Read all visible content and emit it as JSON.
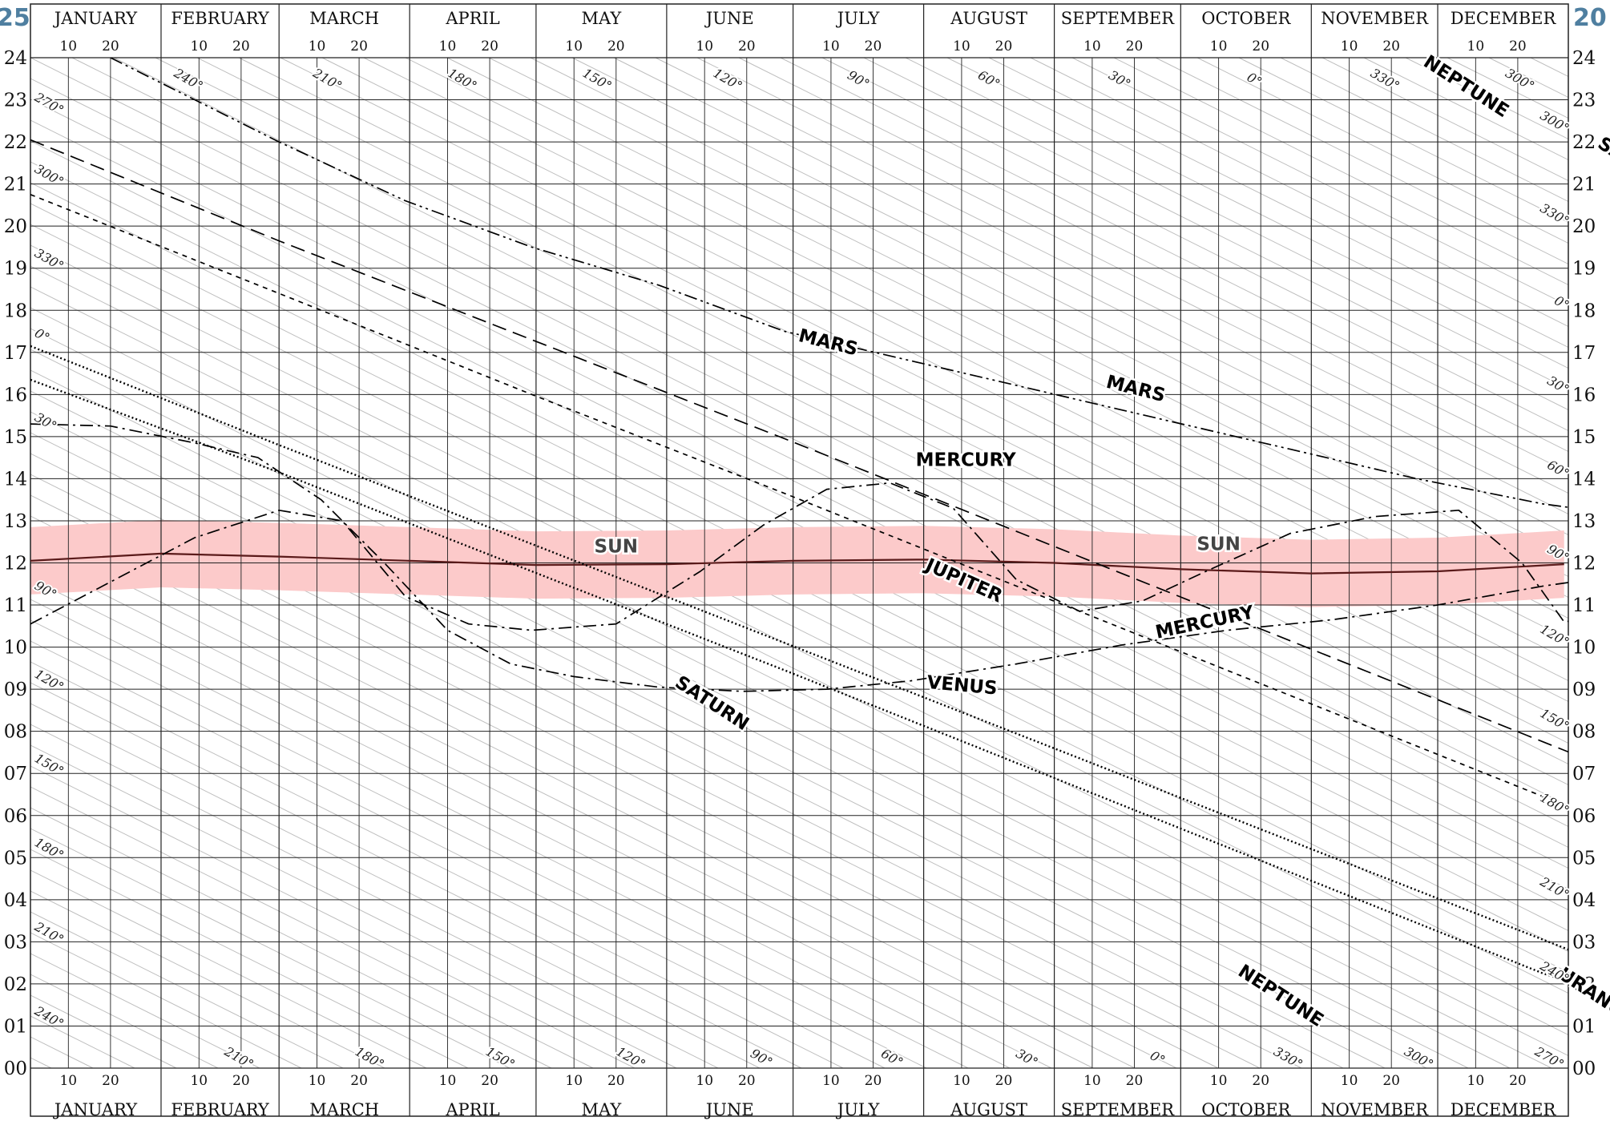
{
  "years": {
    "left": "25",
    "right": "20"
  },
  "months": [
    "JANUARY",
    "FEBRUARY",
    "MARCH",
    "APRIL",
    "MAY",
    "JUNE",
    "JULY",
    "AUGUST",
    "SEPTEMBER",
    "OCTOBER",
    "NOVEMBER",
    "DECEMBER"
  ],
  "day_ticks": [
    "10",
    "20"
  ],
  "hour_ticks": [
    "00",
    "01",
    "02",
    "03",
    "04",
    "05",
    "06",
    "07",
    "08",
    "09",
    "10",
    "11",
    "12",
    "13",
    "14",
    "15",
    "16",
    "17",
    "18",
    "19",
    "20",
    "21",
    "22",
    "23",
    "24"
  ],
  "colors": {
    "grid": "#222222",
    "diagonal": "#bbbbbb",
    "sun_band": "#fccaca",
    "sun_line": "#5a1a1a",
    "year": "#4f7fa0"
  },
  "chart_data": {
    "type": "line",
    "x_axis": {
      "range_days": [
        1,
        366
      ],
      "labels": "months"
    },
    "y_axis": {
      "range_hours": [
        0,
        24
      ]
    },
    "grid": true,
    "series": [
      {
        "name": "SUN",
        "style": "solid",
        "points": [
          [
            1,
            12.05
          ],
          [
            32,
            12.22
          ],
          [
            60,
            12.15
          ],
          [
            91,
            12.05
          ],
          [
            121,
            11.95
          ],
          [
            152,
            11.97
          ],
          [
            182,
            12.05
          ],
          [
            213,
            12.08
          ],
          [
            244,
            12.0
          ],
          [
            274,
            11.85
          ],
          [
            305,
            11.75
          ],
          [
            335,
            11.8
          ],
          [
            365,
            11.97
          ]
        ]
      },
      {
        "name": "MERCURY",
        "style": "dashdot",
        "points": [
          [
            1,
            10.55
          ],
          [
            40,
            12.6
          ],
          [
            60,
            13.25
          ],
          [
            75,
            13.0
          ],
          [
            90,
            11.2
          ],
          [
            105,
            10.55
          ],
          [
            120,
            10.4
          ],
          [
            140,
            10.55
          ],
          [
            160,
            11.8
          ],
          [
            175,
            12.9
          ],
          [
            190,
            13.75
          ],
          [
            205,
            13.9
          ],
          [
            220,
            13.3
          ],
          [
            235,
            11.6
          ],
          [
            250,
            10.85
          ],
          [
            265,
            11.1
          ],
          [
            280,
            11.8
          ],
          [
            300,
            12.7
          ],
          [
            320,
            13.1
          ],
          [
            340,
            13.25
          ],
          [
            355,
            12.0
          ],
          [
            365,
            10.6
          ],
          [
            380,
            10.8
          ],
          [
            395,
            11.1
          ]
        ]
      },
      {
        "name": "VENUS",
        "style": "dashdot",
        "points": [
          [
            1,
            15.3
          ],
          [
            20,
            15.25
          ],
          [
            40,
            14.85
          ],
          [
            55,
            14.5
          ],
          [
            70,
            13.5
          ],
          [
            85,
            12.0
          ],
          [
            100,
            10.4
          ],
          [
            115,
            9.6
          ],
          [
            130,
            9.3
          ],
          [
            150,
            9.05
          ],
          [
            170,
            8.95
          ],
          [
            190,
            9.0
          ],
          [
            210,
            9.2
          ],
          [
            235,
            9.6
          ],
          [
            260,
            10.05
          ],
          [
            285,
            10.4
          ],
          [
            310,
            10.65
          ],
          [
            335,
            11.0
          ],
          [
            360,
            11.45
          ],
          [
            385,
            11.8
          ]
        ]
      },
      {
        "name": "MARS",
        "style": "dashdotdot",
        "points": [
          [
            20,
            24.0
          ],
          [
            40,
            23.0
          ],
          [
            60,
            22.0
          ],
          [
            90,
            20.6
          ],
          [
            120,
            19.5
          ],
          [
            150,
            18.6
          ],
          [
            180,
            17.5
          ],
          [
            210,
            16.8
          ],
          [
            240,
            16.1
          ],
          [
            270,
            15.4
          ],
          [
            300,
            14.7
          ],
          [
            330,
            14.0
          ],
          [
            360,
            13.4
          ],
          [
            390,
            13.0
          ],
          [
            420,
            12.6
          ],
          [
            440,
            12.4
          ]
        ]
      },
      {
        "name": "JUPITER",
        "style": "longdash",
        "points": [
          [
            1,
            22.05
          ],
          [
            60,
            19.65
          ],
          [
            120,
            17.3
          ],
          [
            180,
            14.95
          ],
          [
            240,
            12.55
          ],
          [
            300,
            10.15
          ],
          [
            360,
            7.75
          ],
          [
            420,
            5.35
          ],
          [
            480,
            2.95
          ],
          [
            530,
            0.95
          ]
        ]
      },
      {
        "name": "SATURN",
        "style": "dotted",
        "points": [
          [
            1,
            16.35
          ],
          [
            60,
            14.15
          ],
          [
            120,
            11.8
          ],
          [
            180,
            9.45
          ],
          [
            240,
            7.05
          ],
          [
            300,
            4.65
          ],
          [
            360,
            2.25
          ],
          [
            430,
            0.0
          ],
          [
            440,
            24.0
          ],
          [
            500,
            21.6
          ],
          [
            560,
            19.2
          ],
          [
            620,
            16.8
          ]
        ]
      },
      {
        "name": "URANUS",
        "style": "dashed",
        "points": [
          [
            1,
            20.75
          ],
          [
            60,
            18.4
          ],
          [
            120,
            16.0
          ],
          [
            180,
            13.65
          ],
          [
            240,
            11.25
          ],
          [
            300,
            8.85
          ],
          [
            360,
            6.45
          ],
          [
            420,
            4.1
          ],
          [
            480,
            1.7
          ],
          [
            520,
            0.1
          ],
          [
            570,
            23.5
          ],
          [
            630,
            21.1
          ]
        ]
      },
      {
        "name": "NEPTUNE",
        "style": "dotted",
        "points": [
          [
            1,
            17.15
          ],
          [
            60,
            14.8
          ],
          [
            120,
            12.45
          ],
          [
            180,
            10.1
          ],
          [
            240,
            7.75
          ],
          [
            300,
            5.4
          ],
          [
            360,
            3.05
          ],
          [
            420,
            0.7
          ],
          [
            445,
            0.0
          ],
          [
            455,
            24.0
          ],
          [
            520,
            21.4
          ],
          [
            580,
            19.0
          ],
          [
            640,
            16.6
          ]
        ]
      }
    ],
    "series_labels": [
      {
        "text": "MARS",
        "day": 190,
        "hour": 17.1,
        "angle": 14
      },
      {
        "text": "MARS",
        "day": 263,
        "hour": 16.0,
        "angle": 14
      },
      {
        "text": "MERCURY",
        "day": 223,
        "hour": 14.3,
        "angle": 0
      },
      {
        "text": "MERCURY",
        "day": 280,
        "hour": 10.45,
        "angle": -12
      },
      {
        "text": "SUN",
        "day": 140,
        "hour": 12.25,
        "angle": 0
      },
      {
        "text": "SUN",
        "day": 283,
        "hour": 12.3,
        "angle": 0
      },
      {
        "text": "JUPITER",
        "day": 222,
        "hour": 11.45,
        "angle": 24
      },
      {
        "text": "VENUS",
        "day": 222,
        "hour": 8.95,
        "angle": 5
      },
      {
        "text": "SATURN",
        "day": 162,
        "hour": 8.55,
        "angle": 33
      },
      {
        "text": "SATURN",
        "day": 381,
        "hour": 21.35,
        "angle": 33
      },
      {
        "text": "NEPTUNE",
        "day": 341,
        "hour": 23.2,
        "angle": 33
      },
      {
        "text": "NEPTUNE",
        "day": 297,
        "hour": 1.6,
        "angle": 33
      },
      {
        "text": "URANUS",
        "day": 411,
        "hour": 23.05,
        "angle": 33
      },
      {
        "text": "URANUS",
        "day": 372,
        "hour": 1.6,
        "angle": 33
      }
    ],
    "degree_labels_left": [
      {
        "text": "270°",
        "hour": 23.0
      },
      {
        "text": "300°",
        "hour": 21.3
      },
      {
        "text": "330°",
        "hour": 19.3
      },
      {
        "text": "0°",
        "hour": 17.4
      },
      {
        "text": "30°",
        "hour": 15.4
      },
      {
        "text": "90°",
        "hour": 11.4
      },
      {
        "text": "120°",
        "hour": 9.3
      },
      {
        "text": "150°",
        "hour": 7.3
      },
      {
        "text": "180°",
        "hour": 5.3
      },
      {
        "text": "210°",
        "hour": 3.3
      },
      {
        "text": "240°",
        "hour": 1.3
      }
    ],
    "degree_labels_right": [
      {
        "text": "300°",
        "hour": 22.2
      },
      {
        "text": "330°",
        "hour": 20.0
      },
      {
        "text": "0°",
        "hour": 18.0
      },
      {
        "text": "30°",
        "hour": 16.0
      },
      {
        "text": "60°",
        "hour": 14.0
      },
      {
        "text": "90°",
        "hour": 12.0
      },
      {
        "text": "120°",
        "hour": 10.0
      },
      {
        "text": "150°",
        "hour": 8.0
      },
      {
        "text": "180°",
        "hour": 6.0
      },
      {
        "text": "210°",
        "hour": 4.0
      },
      {
        "text": "240°",
        "hour": 2.0
      }
    ],
    "degree_labels_top": [
      {
        "text": "240°",
        "day": 38
      },
      {
        "text": "210°",
        "day": 71
      },
      {
        "text": "180°",
        "day": 103
      },
      {
        "text": "150°",
        "day": 135
      },
      {
        "text": "120°",
        "day": 166
      },
      {
        "text": "90°",
        "day": 197
      },
      {
        "text": "60°",
        "day": 228
      },
      {
        "text": "30°",
        "day": 259
      },
      {
        "text": "0°",
        "day": 291
      },
      {
        "text": "330°",
        "day": 322
      },
      {
        "text": "300°",
        "day": 354
      }
    ],
    "degree_labels_bottom": [
      {
        "text": "210°",
        "day": 50
      },
      {
        "text": "180°",
        "day": 81
      },
      {
        "text": "150°",
        "day": 112
      },
      {
        "text": "120°",
        "day": 143
      },
      {
        "text": "90°",
        "day": 174
      },
      {
        "text": "60°",
        "day": 205
      },
      {
        "text": "30°",
        "day": 237
      },
      {
        "text": "0°",
        "day": 268
      },
      {
        "text": "330°",
        "day": 299
      },
      {
        "text": "300°",
        "day": 330
      },
      {
        "text": "270°",
        "day": 361
      }
    ]
  }
}
